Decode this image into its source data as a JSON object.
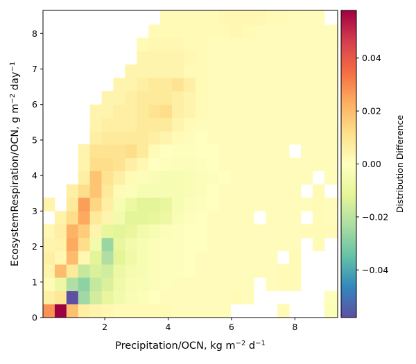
{
  "chart_data": {
    "type": "heatmap",
    "title": "",
    "xlabel": {
      "base": "Precipitation/OCN,  kg m",
      "sup1": "−2",
      "mid": " d",
      "sup2": "−1"
    },
    "ylabel": {
      "base": "EcosystemRespiration/OCN,  g m",
      "sup1": "−2",
      "mid": " day",
      "sup2": "−1"
    },
    "colorbar_label": "Distribution Difference",
    "colormap": "Spectral_r",
    "xlim": [
      0.05,
      9.35
    ],
    "ylim": [
      0,
      8.65
    ],
    "x_ticks": [
      {
        "v": 2,
        "label": "2"
      },
      {
        "v": 4,
        "label": "4"
      },
      {
        "v": 6,
        "label": "6"
      },
      {
        "v": 8,
        "label": "8"
      }
    ],
    "y_ticks": [
      {
        "v": 0,
        "label": "0"
      },
      {
        "v": 1,
        "label": "1"
      },
      {
        "v": 2,
        "label": "2"
      },
      {
        "v": 3,
        "label": "3"
      },
      {
        "v": 4,
        "label": "4"
      },
      {
        "v": 5,
        "label": "5"
      },
      {
        "v": 6,
        "label": "6"
      },
      {
        "v": 7,
        "label": "7"
      },
      {
        "v": 8,
        "label": "8"
      }
    ],
    "colorbar_range": [
      -0.058,
      0.058
    ],
    "colorbar_ticks": [
      {
        "v": 0.04,
        "label": "0.04"
      },
      {
        "v": 0.02,
        "label": "0.02"
      },
      {
        "v": 0.0,
        "label": "0.00"
      },
      {
        "v": -0.02,
        "label": "−0.02"
      },
      {
        "v": -0.04,
        "label": "−0.04"
      }
    ],
    "grid": false,
    "x_edges": [
      0.05,
      0.42,
      0.79,
      1.16,
      1.53,
      1.9,
      2.27,
      2.64,
      3.01,
      3.38,
      3.75,
      4.12,
      4.49,
      4.86,
      5.23,
      5.6,
      5.97,
      6.34,
      6.71,
      7.08,
      7.45,
      7.82,
      8.19,
      8.56,
      8.93,
      9.35
    ],
    "y_edges": [
      0,
      0.38,
      0.75,
      1.13,
      1.5,
      1.88,
      2.25,
      2.63,
      3.0,
      3.38,
      3.75,
      4.13,
      4.5,
      4.88,
      5.25,
      5.63,
      6.0,
      6.38,
      6.75,
      7.13,
      7.5,
      7.88,
      8.25,
      8.65
    ],
    "values": [
      [
        0.028,
        0.058,
        0.019,
        0.006,
        0.004,
        0.003,
        0.002,
        0.002,
        0.002,
        0.002,
        0.002,
        0.001,
        0.001,
        0.001,
        0.001,
        0.001,
        null,
        null,
        null,
        null,
        0.002,
        null,
        null,
        null,
        -0.002
      ],
      [
        0.006,
        0.009,
        -0.058,
        -0.025,
        -0.016,
        -0.01,
        -0.006,
        -0.003,
        -0.002,
        0.0,
        0.001,
        0.001,
        0.001,
        0.001,
        0.001,
        0.001,
        0.002,
        0.001,
        null,
        null,
        null,
        null,
        null,
        null,
        -0.001
      ],
      [
        0.002,
        -0.008,
        -0.022,
        -0.028,
        -0.018,
        -0.014,
        -0.007,
        -0.004,
        -0.003,
        -0.002,
        -0.001,
        0.001,
        0.001,
        0.001,
        0.001,
        0.001,
        0.001,
        0.001,
        null,
        0.001,
        0.002,
        0.002,
        null,
        null,
        null
      ],
      [
        0.004,
        0.02,
        0.008,
        -0.018,
        -0.014,
        -0.016,
        -0.008,
        -0.005,
        -0.004,
        -0.002,
        -0.001,
        -0.001,
        0.0,
        0.001,
        0.001,
        0.001,
        0.001,
        0.001,
        0.001,
        0.001,
        0.002,
        0.002,
        null,
        null,
        null
      ],
      [
        0.006,
        0.003,
        0.02,
        0.003,
        -0.012,
        -0.022,
        -0.012,
        -0.007,
        -0.004,
        -0.002,
        -0.001,
        -0.001,
        0.0,
        0.001,
        0.001,
        0.001,
        0.001,
        0.001,
        0.001,
        0.001,
        null,
        0.002,
        null,
        null,
        null
      ],
      [
        0.004,
        0.005,
        0.024,
        0.012,
        -0.006,
        -0.026,
        -0.01,
        -0.006,
        -0.004,
        -0.002,
        -0.001,
        -0.001,
        0.0,
        0.0,
        0.001,
        0.001,
        0.001,
        0.001,
        0.001,
        0.001,
        0.001,
        0.001,
        null,
        0.002,
        null
      ],
      [
        0.003,
        0.006,
        0.022,
        0.016,
        0.004,
        -0.01,
        -0.012,
        -0.01,
        -0.006,
        -0.004,
        -0.002,
        -0.001,
        0.0,
        0.0,
        0.001,
        0.001,
        0.001,
        0.001,
        0.001,
        0.001,
        0.001,
        0.001,
        0.002,
        0.002,
        0.002
      ],
      [
        null,
        0.005,
        0.012,
        0.024,
        0.008,
        0.004,
        -0.006,
        -0.012,
        -0.012,
        -0.01,
        -0.008,
        -0.003,
        -0.001,
        0.0,
        0.001,
        0.001,
        0.001,
        0.001,
        null,
        0.001,
        0.001,
        0.001,
        null,
        0.002,
        0.001
      ],
      [
        0.004,
        null,
        0.008,
        0.026,
        0.014,
        0.006,
        -0.004,
        -0.008,
        -0.012,
        -0.012,
        -0.01,
        -0.004,
        -0.002,
        -0.001,
        0.0,
        0.001,
        0.001,
        0.001,
        0.001,
        0.001,
        0.001,
        0.001,
        0.001,
        0.002,
        0.001
      ],
      [
        null,
        null,
        0.006,
        0.012,
        0.018,
        0.008,
        0.002,
        -0.002,
        -0.004,
        -0.004,
        -0.004,
        -0.004,
        -0.003,
        -0.002,
        0.0,
        0.001,
        0.001,
        0.001,
        0.001,
        0.001,
        0.001,
        0.001,
        null,
        0.002,
        null
      ],
      [
        null,
        null,
        null,
        0.006,
        0.018,
        0.01,
        0.006,
        0.002,
        -0.002,
        -0.003,
        -0.004,
        -0.004,
        -0.003,
        -0.002,
        -0.001,
        0.0,
        0.001,
        0.001,
        0.001,
        0.001,
        0.001,
        0.001,
        0.001,
        null,
        0.001
      ],
      [
        null,
        null,
        null,
        0.004,
        0.012,
        0.012,
        0.01,
        0.006,
        0.003,
        0.0,
        -0.001,
        -0.002,
        -0.002,
        -0.001,
        0.0,
        0.001,
        0.001,
        0.001,
        0.001,
        0.001,
        0.001,
        0.001,
        0.001,
        0.001,
        0.001
      ],
      [
        null,
        null,
        null,
        0.004,
        0.01,
        0.01,
        0.01,
        0.012,
        0.008,
        0.002,
        0.0,
        -0.001,
        -0.001,
        0.0,
        0.0,
        0.001,
        0.001,
        0.001,
        0.001,
        0.001,
        0.001,
        null,
        0.001,
        0.001,
        0.001
      ],
      [
        null,
        null,
        null,
        null,
        0.006,
        0.008,
        0.008,
        0.008,
        0.008,
        0.006,
        0.004,
        0.002,
        0.001,
        0.0,
        0.001,
        0.001,
        0.001,
        0.001,
        0.001,
        0.001,
        0.001,
        0.001,
        0.001,
        0.001,
        0.001
      ],
      [
        null,
        null,
        null,
        null,
        0.004,
        0.006,
        0.006,
        0.006,
        0.008,
        0.008,
        0.008,
        0.004,
        0.002,
        0.001,
        0.001,
        0.001,
        0.001,
        0.001,
        0.001,
        0.001,
        0.001,
        0.001,
        0.001,
        0.001,
        0.001
      ],
      [
        null,
        null,
        null,
        null,
        0.004,
        0.004,
        0.006,
        0.006,
        0.008,
        0.01,
        0.012,
        0.006,
        0.004,
        0.002,
        0.001,
        0.001,
        0.001,
        0.001,
        0.001,
        0.001,
        0.001,
        0.001,
        0.001,
        0.001,
        0.001
      ],
      [
        null,
        null,
        null,
        null,
        null,
        0.004,
        0.004,
        0.006,
        0.008,
        0.008,
        0.008,
        0.006,
        0.004,
        0.002,
        0.001,
        0.001,
        0.001,
        0.001,
        0.001,
        0.001,
        0.001,
        0.001,
        0.001,
        0.001,
        0.001
      ],
      [
        null,
        null,
        null,
        null,
        null,
        null,
        0.004,
        0.004,
        0.006,
        0.008,
        0.008,
        0.01,
        0.006,
        0.002,
        0.001,
        0.001,
        0.001,
        0.001,
        0.001,
        0.001,
        0.001,
        0.001,
        0.001,
        0.001,
        0.001
      ],
      [
        null,
        null,
        null,
        null,
        null,
        null,
        null,
        0.004,
        0.004,
        0.004,
        0.004,
        0.004,
        0.002,
        0.002,
        0.001,
        0.001,
        0.001,
        0.001,
        0.001,
        0.001,
        0.001,
        0.001,
        0.001,
        0.001,
        0.001
      ],
      [
        null,
        null,
        null,
        null,
        null,
        null,
        null,
        null,
        0.004,
        0.004,
        0.004,
        0.004,
        0.003,
        0.002,
        0.001,
        0.001,
        0.001,
        0.001,
        0.001,
        0.001,
        0.001,
        0.001,
        0.001,
        0.001,
        0.001
      ],
      [
        null,
        null,
        null,
        null,
        null,
        null,
        null,
        null,
        0.002,
        0.003,
        0.003,
        0.003,
        0.002,
        0.002,
        0.001,
        0.001,
        0.001,
        0.001,
        0.001,
        0.001,
        0.001,
        0.001,
        0.001,
        0.001,
        0.001
      ],
      [
        null,
        null,
        null,
        null,
        null,
        null,
        null,
        null,
        null,
        0.002,
        0.002,
        0.002,
        0.002,
        0.002,
        0.002,
        0.002,
        0.003,
        0.002,
        0.001,
        0.001,
        0.001,
        0.001,
        0.001,
        0.001,
        0.001
      ],
      [
        null,
        null,
        null,
        null,
        null,
        null,
        null,
        null,
        null,
        null,
        0.002,
        0.002,
        0.002,
        0.002,
        0.002,
        0.003,
        0.003,
        0.003,
        0.003,
        0.002,
        0.002,
        0.001,
        0.001,
        0.001,
        null
      ]
    ]
  }
}
